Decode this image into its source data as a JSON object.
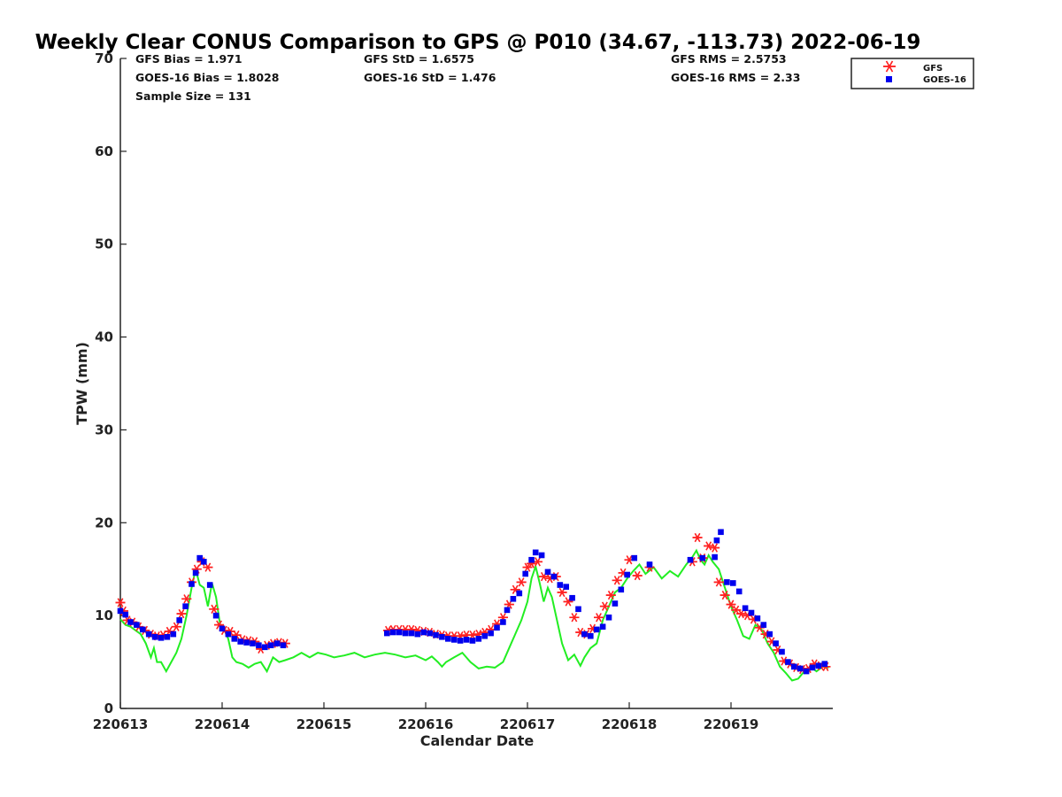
{
  "chart_data": {
    "type": "scatter",
    "title": "Weekly Clear CONUS Comparison to GPS @ P010 (34.67, -113.73) 2022-06-19",
    "xlabel": "Calendar Date",
    "ylabel": "TPW (mm)",
    "x_unit": "day",
    "xlim": [
      0,
      7
    ],
    "ylim": [
      0,
      70
    ],
    "xticks": [
      0,
      1,
      2,
      3,
      4,
      5,
      6
    ],
    "xtick_labels": [
      "220613",
      "220614",
      "220615",
      "220616",
      "220617",
      "220618",
      "220619"
    ],
    "yticks": [
      0,
      10,
      20,
      30,
      40,
      50,
      60,
      70
    ],
    "legend_position": "top-right",
    "grid": false,
    "stats": {
      "gfs_bias": "GFS Bias = 1.971",
      "goes_bias": "GOES-16 Bias = 1.8028",
      "sample_size": "Sample Size = 131",
      "gfs_std": "GFS StD = 1.6575",
      "goes_std": "GOES-16 StD = 1.476",
      "gfs_rms": "GFS RMS = 2.5753",
      "goes_rms": "GOES-16 RMS = 2.33"
    },
    "series": [
      {
        "name": "GFS",
        "marker": "asterisk",
        "color": "#ff2020",
        "x": [
          0.0,
          0.03,
          0.07,
          0.12,
          0.18,
          0.24,
          0.3,
          0.36,
          0.42,
          0.48,
          0.55,
          0.6,
          0.65,
          0.7,
          0.75,
          0.8,
          0.86,
          0.92,
          0.97,
          1.02,
          1.08,
          1.14,
          1.2,
          1.26,
          1.32,
          1.38,
          1.44,
          1.5,
          1.56,
          1.62,
          2.63,
          2.68,
          2.74,
          2.8,
          2.86,
          2.92,
          2.98,
          3.04,
          3.1,
          3.16,
          3.22,
          3.28,
          3.34,
          3.4,
          3.46,
          3.52,
          3.58,
          3.64,
          3.7,
          3.76,
          3.82,
          3.88,
          3.94,
          4.0,
          4.04,
          4.1,
          4.16,
          4.22,
          4.28,
          4.34,
          4.4,
          4.46,
          4.52,
          4.58,
          4.64,
          4.7,
          4.76,
          4.82,
          4.88,
          4.94,
          5.0,
          5.08,
          5.2,
          5.62,
          5.67,
          5.72,
          5.78,
          5.84,
          5.88,
          5.94,
          6.0,
          6.05,
          6.1,
          6.16,
          6.22,
          6.28,
          6.34,
          6.4,
          6.46,
          6.52,
          6.58,
          6.64,
          6.7,
          6.76,
          6.82,
          6.88,
          6.93
        ],
        "y": [
          11.4,
          10.5,
          9.5,
          9.3,
          8.8,
          8.4,
          8.0,
          7.8,
          7.9,
          8.3,
          8.8,
          10.2,
          11.8,
          13.6,
          15.0,
          15.8,
          15.2,
          10.7,
          9.0,
          8.4,
          8.3,
          7.9,
          7.4,
          7.3,
          7.2,
          6.4,
          6.8,
          7.0,
          7.1,
          7.0,
          8.4,
          8.5,
          8.5,
          8.5,
          8.5,
          8.4,
          8.3,
          8.2,
          8.0,
          7.9,
          7.8,
          7.8,
          7.8,
          7.9,
          7.9,
          8.0,
          8.2,
          8.5,
          9.1,
          9.8,
          11.2,
          12.8,
          13.6,
          15.2,
          15.6,
          15.8,
          14.2,
          14.0,
          14.2,
          12.5,
          11.5,
          9.8,
          8.2,
          8.0,
          8.6,
          9.8,
          11.0,
          12.2,
          13.8,
          14.6,
          16.0,
          14.3,
          15.2,
          15.8,
          18.4,
          16.2,
          17.5,
          17.3,
          13.6,
          12.2,
          11.2,
          10.6,
          10.2,
          10.0,
          9.6,
          8.7,
          8.0,
          7.2,
          6.3,
          5.1,
          4.8,
          4.4,
          4.2,
          4.3,
          4.8,
          4.6,
          4.5
        ]
      },
      {
        "name": "GOES-16",
        "marker": "square",
        "color": "#0000ee",
        "x": [
          0.0,
          0.05,
          0.1,
          0.16,
          0.22,
          0.28,
          0.34,
          0.4,
          0.46,
          0.52,
          0.58,
          0.64,
          0.7,
          0.74,
          0.78,
          0.82,
          0.88,
          0.94,
          1.0,
          1.06,
          1.12,
          1.18,
          1.24,
          1.3,
          1.36,
          1.42,
          1.48,
          1.54,
          1.6,
          2.62,
          2.68,
          2.74,
          2.8,
          2.86,
          2.92,
          2.98,
          3.04,
          3.1,
          3.16,
          3.22,
          3.28,
          3.34,
          3.4,
          3.46,
          3.52,
          3.58,
          3.64,
          3.7,
          3.76,
          3.8,
          3.86,
          3.92,
          3.98,
          4.04,
          4.08,
          4.14,
          4.2,
          4.26,
          4.32,
          4.38,
          4.44,
          4.5,
          4.56,
          4.62,
          4.68,
          4.74,
          4.8,
          4.86,
          4.92,
          4.98,
          5.05,
          5.2,
          5.6,
          5.72,
          5.84,
          5.86,
          5.9,
          5.96,
          6.02,
          6.08,
          6.14,
          6.2,
          6.26,
          6.32,
          6.38,
          6.44,
          6.5,
          6.56,
          6.62,
          6.68,
          6.74,
          6.8,
          6.86,
          6.92
        ],
        "y": [
          10.5,
          10.1,
          9.3,
          9.0,
          8.5,
          8.0,
          7.7,
          7.6,
          7.7,
          8.0,
          9.5,
          11.0,
          13.4,
          14.6,
          16.2,
          15.8,
          13.3,
          10.0,
          8.6,
          8.0,
          7.5,
          7.2,
          7.1,
          7.0,
          6.8,
          6.6,
          6.8,
          7.0,
          6.8,
          8.1,
          8.2,
          8.2,
          8.1,
          8.1,
          8.0,
          8.2,
          8.1,
          7.9,
          7.7,
          7.5,
          7.4,
          7.3,
          7.4,
          7.3,
          7.5,
          7.8,
          8.1,
          8.7,
          9.3,
          10.6,
          11.8,
          12.4,
          14.5,
          16.0,
          16.8,
          16.5,
          14.7,
          14.2,
          13.3,
          13.1,
          11.9,
          10.7,
          8.0,
          7.8,
          8.5,
          8.8,
          9.8,
          11.3,
          12.8,
          14.4,
          16.2,
          15.5,
          16.0,
          16.2,
          16.3,
          18.1,
          19.0,
          13.6,
          13.5,
          12.6,
          10.8,
          10.3,
          9.7,
          9.0,
          8.0,
          7.0,
          6.1,
          5.0,
          4.5,
          4.3,
          4.0,
          4.4,
          4.6,
          4.8
        ]
      },
      {
        "name": "GPS",
        "marker": "line",
        "color": "#22ee22",
        "x": [
          0.0,
          0.05,
          0.1,
          0.15,
          0.2,
          0.25,
          0.3,
          0.33,
          0.36,
          0.4,
          0.45,
          0.5,
          0.55,
          0.6,
          0.65,
          0.7,
          0.74,
          0.78,
          0.82,
          0.86,
          0.9,
          0.94,
          0.98,
          1.02,
          1.06,
          1.1,
          1.14,
          1.2,
          1.26,
          1.32,
          1.38,
          1.44,
          1.5,
          1.56,
          1.62,
          1.7,
          1.78,
          1.86,
          1.94,
          2.02,
          2.1,
          2.2,
          2.3,
          2.4,
          2.5,
          2.6,
          2.7,
          2.8,
          2.9,
          3.0,
          3.06,
          3.12,
          3.16,
          3.2,
          3.28,
          3.36,
          3.44,
          3.52,
          3.6,
          3.68,
          3.76,
          3.82,
          3.88,
          3.94,
          4.0,
          4.04,
          4.08,
          4.12,
          4.16,
          4.2,
          4.24,
          4.28,
          4.34,
          4.4,
          4.46,
          4.52,
          4.56,
          4.62,
          4.68,
          4.74,
          4.8,
          4.86,
          4.92,
          4.98,
          5.04,
          5.1,
          5.16,
          5.24,
          5.32,
          5.4,
          5.48,
          5.56,
          5.62,
          5.66,
          5.7,
          5.74,
          5.78,
          5.82,
          5.88,
          5.94,
          6.0,
          6.06,
          6.12,
          6.18,
          6.24,
          6.3,
          6.36,
          6.42,
          6.48,
          6.54,
          6.6,
          6.66,
          6.72,
          6.78,
          6.84,
          6.9,
          6.96
        ],
        "y": [
          9.6,
          9.0,
          8.8,
          8.4,
          8.0,
          7.0,
          5.5,
          6.5,
          5.0,
          5.0,
          4.0,
          5.0,
          6.0,
          7.5,
          10.0,
          13.0,
          15.0,
          13.3,
          13.0,
          11.0,
          13.5,
          12.0,
          9.0,
          8.5,
          7.5,
          5.5,
          5.0,
          4.8,
          4.4,
          4.8,
          5.0,
          4.0,
          5.5,
          5.0,
          5.2,
          5.5,
          6.0,
          5.5,
          6.0,
          5.8,
          5.5,
          5.7,
          6.0,
          5.5,
          5.8,
          6.0,
          5.8,
          5.5,
          5.7,
          5.2,
          5.6,
          5.0,
          4.5,
          5.0,
          5.5,
          6.0,
          5.0,
          4.3,
          4.5,
          4.4,
          5.0,
          6.5,
          8.0,
          9.5,
          11.5,
          14.0,
          15.3,
          13.5,
          11.5,
          13.0,
          12.0,
          10.0,
          7.0,
          5.2,
          5.8,
          4.6,
          5.5,
          6.5,
          7.0,
          9.5,
          11.0,
          12.5,
          13.0,
          14.0,
          14.8,
          15.5,
          14.5,
          15.2,
          14.0,
          14.8,
          14.2,
          15.5,
          16.3,
          17.0,
          16.0,
          15.5,
          16.5,
          15.8,
          15.0,
          13.0,
          11.0,
          9.5,
          7.8,
          7.5,
          9.0,
          8.5,
          7.0,
          6.0,
          4.5,
          3.8,
          3.0,
          3.2,
          4.0,
          4.5,
          4.0,
          4.5,
          4.4
        ]
      }
    ]
  }
}
